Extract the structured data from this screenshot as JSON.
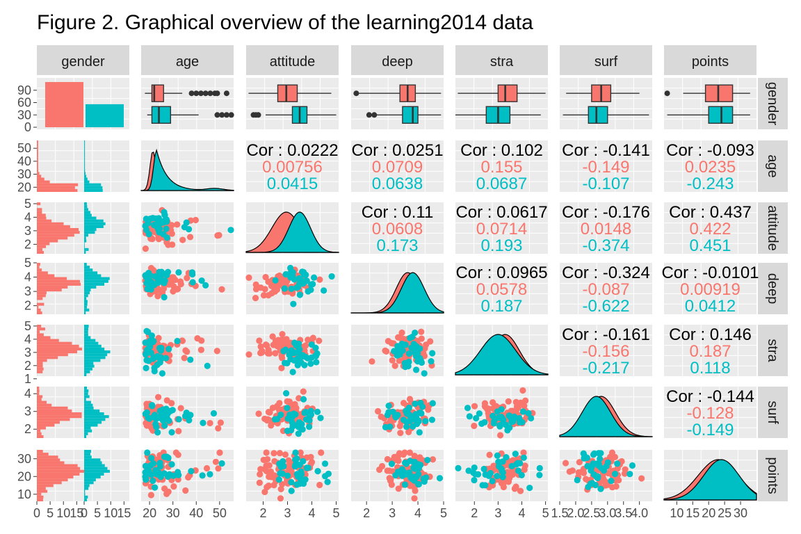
{
  "title": "Figure 2. Graphical overview of the learning2014 data",
  "colors": {
    "female": "#F8766D",
    "male": "#00BFC4",
    "panel": "#EBEBEB",
    "strip": "#D9D9D9",
    "text": "#000000",
    "tick": "#4D4D4D"
  },
  "chart_data": {
    "type": "scatter",
    "subtype": "pairs-matrix",
    "variables": [
      "gender",
      "age",
      "attitude",
      "deep",
      "stra",
      "surf",
      "points"
    ],
    "groups": [
      "F",
      "M"
    ],
    "axis_ticks": {
      "gender_count": [
        "0",
        "30",
        "60",
        "90"
      ],
      "gender_count_bottom": [
        "0",
        "5",
        "10",
        "15",
        "0",
        "5",
        "10",
        "15"
      ],
      "age": [
        "20",
        "30",
        "40",
        "50"
      ],
      "attitude": [
        "2",
        "3",
        "4",
        "5"
      ],
      "deep": [
        "2",
        "3",
        "4",
        "5"
      ],
      "stra": [
        "1",
        "2",
        "3",
        "4",
        "5"
      ],
      "stra_bottom": [
        "2",
        "3",
        "4",
        "5"
      ],
      "surf": [
        "2",
        "3",
        "4"
      ],
      "surf_bottom": [
        "1.5",
        "2.0",
        "2.5",
        "3.0",
        "3.5",
        "4.0"
      ],
      "points": [
        "10",
        "20",
        "30"
      ],
      "points_bottom": [
        "10",
        "15",
        "20",
        "25",
        "30"
      ]
    },
    "gender_counts": {
      "F": 110,
      "M": 56
    },
    "correlations": [
      {
        "row": "age",
        "col": "attitude",
        "total": "Cor : 0.0222",
        "F": "0.00756",
        "M": "0.0415"
      },
      {
        "row": "age",
        "col": "deep",
        "total": "Cor : 0.0251",
        "F": "0.0709",
        "M": "0.0638"
      },
      {
        "row": "age",
        "col": "stra",
        "total": "Cor : 0.102",
        "F": "0.155",
        "M": "0.0687"
      },
      {
        "row": "age",
        "col": "surf",
        "total": "Cor : -0.141",
        "F": "-0.149",
        "M": "-0.107"
      },
      {
        "row": "age",
        "col": "points",
        "total": "Cor : -0.093",
        "F": "0.0235",
        "M": "-0.243"
      },
      {
        "row": "attitude",
        "col": "deep",
        "total": "Cor : 0.11",
        "F": "0.0608",
        "M": "0.173"
      },
      {
        "row": "attitude",
        "col": "stra",
        "total": "Cor : 0.0617",
        "F": "0.0714",
        "M": "0.193"
      },
      {
        "row": "attitude",
        "col": "surf",
        "total": "Cor : -0.176",
        "F": "0.0148",
        "M": "-0.374"
      },
      {
        "row": "attitude",
        "col": "points",
        "total": "Cor : 0.437",
        "F": "0.422",
        "M": "0.451"
      },
      {
        "row": "deep",
        "col": "stra",
        "total": "Cor : 0.0965",
        "F": "0.0578",
        "M": "0.187"
      },
      {
        "row": "deep",
        "col": "surf",
        "total": "Cor : -0.324",
        "F": "-0.087",
        "M": "-0.622"
      },
      {
        "row": "deep",
        "col": "points",
        "total": "Cor : -0.0101",
        "F": "0.00919",
        "M": "0.0412"
      },
      {
        "row": "stra",
        "col": "surf",
        "total": "Cor : -0.161",
        "F": "-0.156",
        "M": "-0.217"
      },
      {
        "row": "stra",
        "col": "points",
        "total": "Cor : 0.146",
        "F": "0.187",
        "M": "0.118"
      },
      {
        "row": "surf",
        "col": "points",
        "total": "Cor : -0.144",
        "F": "-0.128",
        "M": "-0.149"
      }
    ],
    "boxplots": {
      "age": {
        "F": [
          18,
          21,
          22,
          26,
          34
        ],
        "M": [
          19,
          21,
          24,
          29,
          41
        ]
      },
      "attitude": {
        "F": [
          1.4,
          2.6,
          2.95,
          3.4,
          4.8
        ],
        "M": [
          2.1,
          3.2,
          3.5,
          3.8,
          5.0
        ]
      },
      "deep": {
        "F": [
          1.6,
          3.3,
          3.6,
          3.9,
          4.9
        ],
        "M": [
          2.2,
          3.4,
          3.8,
          4.0,
          4.9
        ]
      },
      "stra": {
        "F": [
          1.3,
          3.0,
          3.3,
          3.8,
          5.0
        ],
        "M": [
          1.2,
          2.5,
          3.0,
          3.5,
          4.8
        ]
      },
      "surf": {
        "F": [
          1.7,
          2.5,
          2.8,
          3.1,
          4.0
        ],
        "M": [
          1.6,
          2.4,
          2.65,
          3.0,
          4.3
        ]
      },
      "points": {
        "F": [
          12,
          19,
          23,
          27.5,
          33
        ],
        "M": [
          7,
          20,
          24,
          27.5,
          33
        ]
      }
    },
    "box_outliers": {
      "age": {
        "F": [
          38,
          40,
          42,
          44,
          46,
          48,
          49,
          53
        ],
        "M": [
          49,
          51,
          53,
          55
        ]
      },
      "attitude": {
        "F": [],
        "M": [
          1.6,
          1.7,
          1.8
        ]
      },
      "deep": {
        "F": [
          1.6
        ],
        "M": [
          2.1,
          2.3
        ]
      },
      "stra": {
        "F": [],
        "M": []
      },
      "surf": {
        "F": [],
        "M": []
      },
      "points": {
        "F": [
          7
        ],
        "M": []
      }
    }
  }
}
